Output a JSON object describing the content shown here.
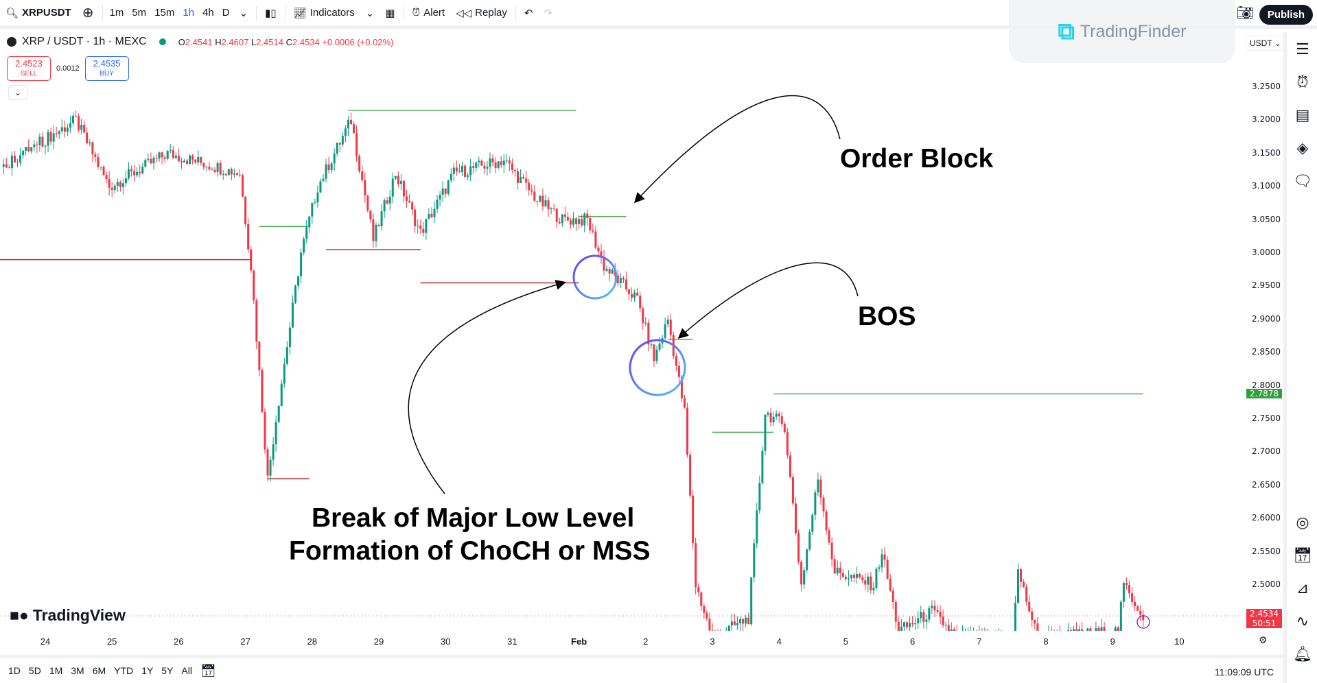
{
  "toolbar": {
    "symbol": "XRPUSDT",
    "timeframes": [
      "1m",
      "5m",
      "15m",
      "1h",
      "4h",
      "D"
    ],
    "active_timeframe": "1h",
    "indicators": "Indicators",
    "alert": "Alert",
    "replay": "Replay",
    "publish": "Publish"
  },
  "watermark": {
    "brand": "TradingFinder"
  },
  "legend": {
    "title": "XRP / USDT · 1h · MEXC",
    "o_label": "O",
    "o": "2.4541",
    "h_label": "H",
    "h": "2.4607",
    "l_label": "L",
    "l": "2.4514",
    "c_label": "C",
    "c": "2.4534",
    "change": "+0.0006 (+0.02%)"
  },
  "trade": {
    "sell_price": "2.4523",
    "sell_label": "SELL",
    "spread": "0.0012",
    "buy_price": "2.4535",
    "buy_label": "BUY"
  },
  "price_axis": {
    "currency": "USDT",
    "ticks": [
      "3.2500",
      "3.2000",
      "3.1500",
      "3.1000",
      "3.0500",
      "3.0000",
      "2.9500",
      "2.9000",
      "2.8500",
      "2.8000",
      "2.7500",
      "2.7000",
      "2.6500",
      "2.6000",
      "2.5500",
      "2.5000"
    ],
    "level_tag": "2.7878",
    "last_price": "2.4534",
    "countdown": "50:51"
  },
  "time_axis": {
    "labels": [
      "24",
      "25",
      "26",
      "27",
      "28",
      "29",
      "30",
      "31",
      "Feb",
      "2",
      "3",
      "4",
      "5",
      "6",
      "7",
      "8",
      "9",
      "10"
    ]
  },
  "bottom": {
    "ranges": [
      "1D",
      "5D",
      "1M",
      "3M",
      "6M",
      "YTD",
      "1Y",
      "5Y",
      "All"
    ],
    "clock": "11:09:09 UTC"
  },
  "tradingview_logo": "TradingView",
  "annotations": {
    "order_block": "Order Block",
    "bos": "BOS",
    "choch_line1": "Break of Major Low Level",
    "choch_line2": "Formation of ChoCH or MSS"
  },
  "colors": {
    "up": "#089981",
    "down": "#f23645",
    "accent": "#2962ff",
    "level_green": "#4caf50",
    "level_red": "#c62828"
  },
  "chart_data": {
    "type": "candlestick",
    "symbol": "XRP / USDT",
    "interval": "1h",
    "ylim": [
      2.43,
      3.28
    ],
    "path": [
      [
        "Jan 23 08:00",
        3.13
      ],
      [
        "Jan 24 11:00",
        3.2
      ],
      [
        "Jan 24 23:00",
        3.1
      ],
      [
        "Jan 25 20:00",
        3.15
      ],
      [
        "Jan 26 22:00",
        3.12
      ],
      [
        "Jan 27 02:00",
        2.98
      ],
      [
        "Jan 27 08:00",
        2.66
      ],
      [
        "Jan 27 11:00",
        2.75
      ],
      [
        "Jan 27 20:00",
        3.0
      ],
      [
        "Jan 28 02:00",
        3.1
      ],
      [
        "Jan 28 14:00",
        3.2
      ],
      [
        "Jan 28 22:00",
        3.02
      ],
      [
        "Jan 29 06:00",
        3.12
      ],
      [
        "Jan 29 15:00",
        3.03
      ],
      [
        "Jan 30 03:00",
        3.12
      ],
      [
        "Jan 30 21:00",
        3.14
      ],
      [
        "Jan 31 09:00",
        3.08
      ],
      [
        "Jan 31 18:00",
        3.05
      ],
      [
        "Feb 1 03:00",
        3.05
      ],
      [
        "Feb 1 09:00",
        2.98
      ],
      [
        "Feb 1 21:00",
        2.93
      ],
      [
        "Feb 2 03:00",
        2.84
      ],
      [
        "Feb 2 08:00",
        2.9
      ],
      [
        "Feb 2 14:00",
        2.76
      ],
      [
        "Feb 2 18:00",
        2.5
      ],
      [
        "Feb 3 00:00",
        2.42
      ],
      [
        "Feb 3 13:00",
        2.45
      ],
      [
        "Feb 3 19:00",
        2.76
      ],
      [
        "Feb 4 02:00",
        2.74
      ],
      [
        "Feb 4 08:00",
        2.5
      ],
      [
        "Feb 4 14:00",
        2.66
      ],
      [
        "Feb 4 20:00",
        2.52
      ],
      [
        "Feb 5 10:00",
        2.5
      ],
      [
        "Feb 5 13:00",
        2.55
      ],
      [
        "Feb 5 19:00",
        2.43
      ],
      [
        "Feb 6 07:00",
        2.46
      ],
      [
        "Feb 6 16:00",
        2.42
      ],
      [
        "Feb 7 12:00",
        2.42
      ],
      [
        "Feb 7 14:00",
        2.52
      ],
      [
        "Feb 7 21:00",
        2.42
      ],
      [
        "Feb 9 02:00",
        2.43
      ],
      [
        "Feb 9 04:00",
        2.5
      ],
      [
        "Feb 9 11:00",
        2.4534
      ]
    ],
    "levels": [
      {
        "price": 2.99,
        "from": "Jan 23 00:00",
        "to": "Jan 27 02:00",
        "color": "#c62828"
      },
      {
        "price": 3.215,
        "from": "Jan 28 13:00",
        "to": "Jan 31 23:00",
        "color": "#4caf50"
      },
      {
        "price": 2.955,
        "from": "Jan 29 15:00",
        "to": "Feb 1 00:00",
        "color": "#c62828"
      },
      {
        "price": 3.005,
        "from": "Jan 28 05:00",
        "to": "Jan 29 15:00",
        "color": "#c62828"
      },
      {
        "price": 3.04,
        "from": "Jan 27 05:00",
        "to": "Jan 27 23:00",
        "color": "#4caf50"
      },
      {
        "price": 2.66,
        "from": "Jan 27 08:00",
        "to": "Jan 27 23:00",
        "color": "#c62828"
      },
      {
        "price": 2.7878,
        "from": "Feb 3 22:00",
        "to": "Feb 9 11:00",
        "color": "#4caf50"
      },
      {
        "price": 2.73,
        "from": "Feb 3 00:00",
        "to": "Feb 3 22:00",
        "color": "#4caf50"
      },
      {
        "price": 2.87,
        "from": "Feb 2 08:00",
        "to": "Feb 2 17:00",
        "color": "#4caf50"
      },
      {
        "price": 3.055,
        "from": "Feb 1 00:00",
        "to": "Feb 1 17:00",
        "color": "#4caf50"
      }
    ]
  }
}
